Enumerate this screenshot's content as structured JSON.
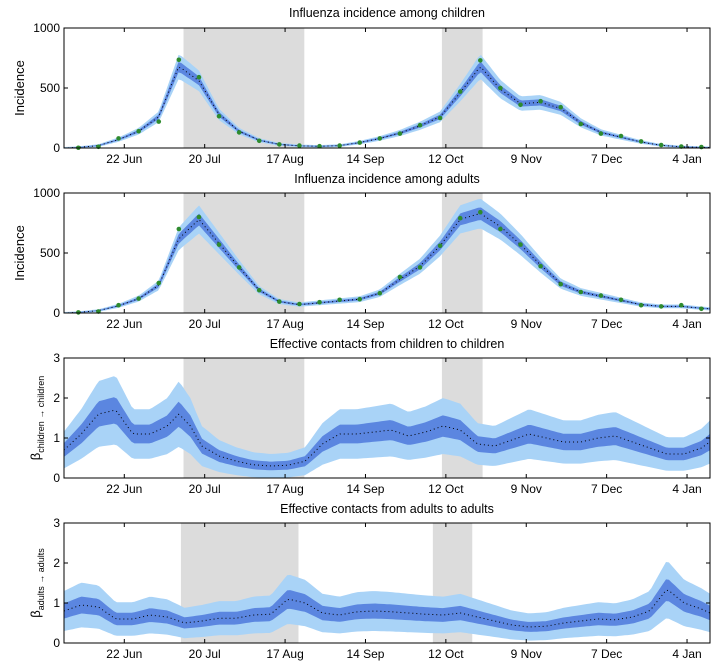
{
  "figure": {
    "band_colors": {
      "outer": "#a9d3f7",
      "inner": "#5b86e0",
      "median": "#000000",
      "observed": "#2e8b2e",
      "shade": "#dcdcdc"
    }
  },
  "chart_data": [
    {
      "type": "line",
      "title": "Influenza incidence among children",
      "ylabel": "Incidence",
      "ylim": [
        0,
        1000
      ],
      "yticks": [
        "0",
        "500",
        "1000"
      ],
      "xlim_days": [
        0,
        225
      ],
      "xticks": [
        {
          "day": 21,
          "label": "22 Jun"
        },
        {
          "day": 49,
          "label": "20 Jul"
        },
        {
          "day": 77,
          "label": "17 Aug"
        },
        {
          "day": 105,
          "label": "14 Sep"
        },
        {
          "day": 133,
          "label": "12 Oct"
        },
        {
          "day": 161,
          "label": "9 Nov"
        },
        {
          "day": 189,
          "label": "7 Dec"
        },
        {
          "day": 217,
          "label": "4 Jan"
        }
      ],
      "shaded_periods": [
        [
          42,
          84
        ],
        [
          133,
          147
        ]
      ],
      "observed": {
        "x": [
          5,
          12,
          19,
          26,
          33,
          40,
          47,
          54,
          61,
          68,
          75,
          82,
          89,
          96,
          103,
          110,
          117,
          124,
          131,
          138,
          145,
          152,
          159,
          166,
          173,
          180,
          187,
          194,
          201,
          208,
          215,
          222
        ],
        "y": [
          2,
          10,
          80,
          140,
          220,
          735,
          590,
          265,
          130,
          60,
          30,
          20,
          15,
          20,
          45,
          80,
          120,
          190,
          250,
          470,
          730,
          500,
          360,
          390,
          340,
          200,
          120,
          100,
          55,
          25,
          12,
          8
        ]
      },
      "median": {
        "x": [
          0,
          5,
          12,
          19,
          26,
          33,
          40,
          47,
          54,
          61,
          68,
          75,
          82,
          89,
          96,
          103,
          110,
          117,
          124,
          131,
          138,
          145,
          152,
          159,
          166,
          173,
          180,
          187,
          194,
          201,
          208,
          215,
          222,
          225
        ],
        "y": [
          0,
          5,
          20,
          70,
          140,
          260,
          680,
          560,
          280,
          140,
          65,
          30,
          18,
          14,
          20,
          45,
          80,
          125,
          185,
          260,
          460,
          680,
          490,
          370,
          380,
          330,
          210,
          130,
          90,
          50,
          22,
          10,
          5,
          4
        ]
      }
    },
    {
      "type": "line",
      "title": "Influenza incidence among adults",
      "ylabel": "Incidence",
      "ylim": [
        0,
        1000
      ],
      "yticks": [
        "0",
        "500",
        "1000"
      ],
      "xlim_days": [
        0,
        225
      ],
      "xticks": [
        {
          "day": 21,
          "label": "22 Jun"
        },
        {
          "day": 49,
          "label": "20 Jul"
        },
        {
          "day": 77,
          "label": "17 Aug"
        },
        {
          "day": 105,
          "label": "14 Sep"
        },
        {
          "day": 133,
          "label": "12 Oct"
        },
        {
          "day": 161,
          "label": "9 Nov"
        },
        {
          "day": 189,
          "label": "7 Dec"
        },
        {
          "day": 217,
          "label": "4 Jan"
        }
      ],
      "shaded_periods": [
        [
          42,
          84
        ],
        [
          133,
          147
        ]
      ],
      "observed": {
        "x": [
          5,
          12,
          19,
          26,
          33,
          40,
          47,
          54,
          61,
          68,
          75,
          82,
          89,
          96,
          103,
          110,
          117,
          124,
          131,
          138,
          145,
          152,
          159,
          166,
          173,
          180,
          187,
          194,
          201,
          208,
          215,
          222
        ],
        "y": [
          5,
          12,
          65,
          120,
          250,
          700,
          800,
          570,
          380,
          190,
          95,
          75,
          90,
          110,
          115,
          165,
          300,
          380,
          560,
          790,
          840,
          700,
          570,
          390,
          240,
          175,
          145,
          110,
          65,
          55,
          65,
          35
        ]
      },
      "median": {
        "x": [
          0,
          5,
          12,
          19,
          26,
          33,
          40,
          47,
          54,
          61,
          68,
          75,
          82,
          89,
          96,
          103,
          110,
          117,
          124,
          131,
          138,
          145,
          152,
          159,
          166,
          173,
          180,
          187,
          194,
          201,
          208,
          215,
          222,
          225
        ],
        "y": [
          0,
          5,
          20,
          60,
          120,
          230,
          620,
          780,
          580,
          380,
          190,
          95,
          70,
          85,
          100,
          115,
          165,
          280,
          390,
          560,
          780,
          830,
          720,
          570,
          400,
          245,
          175,
          140,
          105,
          70,
          55,
          55,
          40,
          35
        ]
      }
    },
    {
      "type": "area",
      "title": "Effective contacts from children to children",
      "ylabel": "β",
      "ylabel_sub": "children → children",
      "ylim": [
        0,
        3
      ],
      "yticks": [
        "0",
        "1",
        "2",
        "3"
      ],
      "xlim_days": [
        0,
        225
      ],
      "xticks": [
        {
          "day": 21,
          "label": "22 Jun"
        },
        {
          "day": 49,
          "label": "20 Jul"
        },
        {
          "day": 77,
          "label": "17 Aug"
        },
        {
          "day": 105,
          "label": "14 Sep"
        },
        {
          "day": 133,
          "label": "12 Oct"
        },
        {
          "day": 161,
          "label": "9 Nov"
        },
        {
          "day": 189,
          "label": "7 Dec"
        },
        {
          "day": 217,
          "label": "4 Jan"
        }
      ],
      "shaded_periods": [
        [
          42,
          84
        ],
        [
          133,
          147
        ]
      ],
      "median": {
        "x": [
          0,
          6,
          12,
          18,
          24,
          30,
          36,
          40,
          44,
          48,
          54,
          60,
          66,
          72,
          78,
          84,
          90,
          96,
          102,
          108,
          114,
          120,
          126,
          132,
          138,
          144,
          150,
          156,
          162,
          168,
          174,
          180,
          186,
          192,
          198,
          204,
          210,
          216,
          222,
          225
        ],
        "y": [
          0.7,
          1.1,
          1.6,
          1.7,
          1.1,
          1.1,
          1.3,
          1.6,
          1.3,
          0.8,
          0.55,
          0.42,
          0.33,
          0.3,
          0.32,
          0.42,
          0.85,
          1.1,
          1.1,
          1.15,
          1.2,
          1.05,
          1.15,
          1.3,
          1.2,
          0.85,
          0.8,
          0.95,
          1.1,
          1.0,
          0.9,
          0.9,
          1.0,
          1.05,
          0.9,
          0.75,
          0.6,
          0.6,
          0.75,
          0.9
        ]
      }
    },
    {
      "type": "area",
      "title": "Effective contacts from adults to adults",
      "ylabel": "β",
      "ylabel_sub": "adults → adults",
      "ylim": [
        0,
        3
      ],
      "yticks": [
        "0",
        "1",
        "2",
        "3"
      ],
      "xlim_days": [
        0,
        225
      ],
      "xticks": [
        {
          "day": 21,
          "label": "22 Jun"
        },
        {
          "day": 49,
          "label": "20 Jul"
        },
        {
          "day": 77,
          "label": "17 Aug"
        },
        {
          "day": 105,
          "label": "14 Sep"
        },
        {
          "day": 133,
          "label": "12 Oct"
        },
        {
          "day": 161,
          "label": "9 Nov"
        },
        {
          "day": 189,
          "label": "7 Dec"
        },
        {
          "day": 217,
          "label": "4 Jan"
        }
      ],
      "shaded_periods": [
        [
          42,
          84
        ],
        [
          133,
          147
        ]
      ],
      "median": {
        "x": [
          0,
          6,
          12,
          18,
          24,
          30,
          36,
          42,
          48,
          54,
          60,
          66,
          72,
          78,
          84,
          90,
          96,
          102,
          108,
          114,
          120,
          126,
          132,
          138,
          144,
          150,
          156,
          162,
          168,
          174,
          180,
          186,
          192,
          198,
          204,
          210,
          216,
          222,
          225
        ],
        "y": [
          0.8,
          0.95,
          0.9,
          0.6,
          0.6,
          0.7,
          0.65,
          0.5,
          0.55,
          0.62,
          0.62,
          0.7,
          0.72,
          1.1,
          1.0,
          0.75,
          0.7,
          0.78,
          0.8,
          0.78,
          0.75,
          0.72,
          0.7,
          0.75,
          0.65,
          0.55,
          0.45,
          0.4,
          0.42,
          0.5,
          0.55,
          0.6,
          0.58,
          0.65,
          0.8,
          1.35,
          1.0,
          0.85,
          0.75
        ]
      }
    }
  ]
}
